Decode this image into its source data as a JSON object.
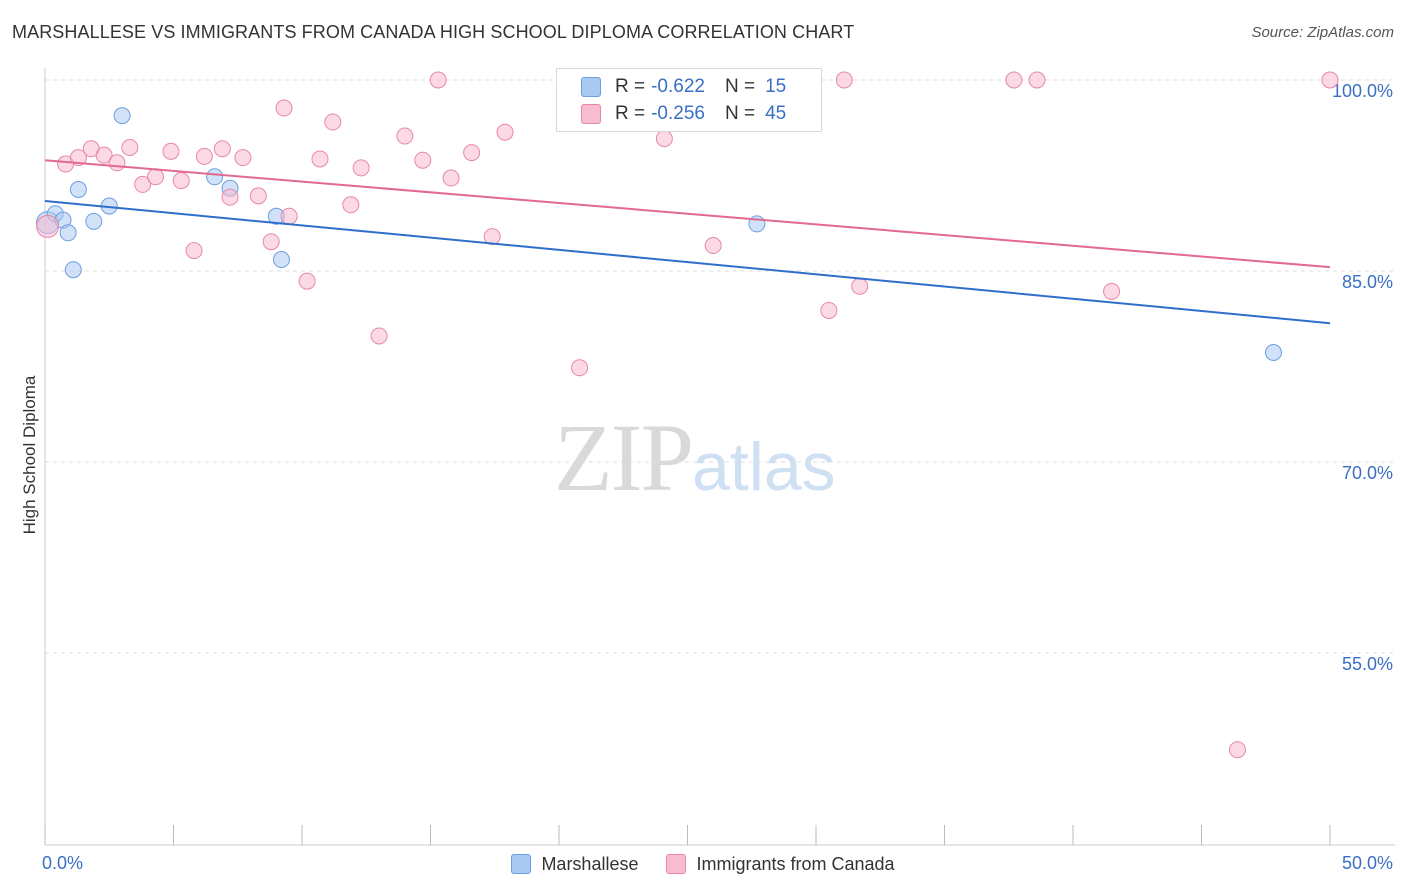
{
  "title": "MARSHALLESE VS IMMIGRANTS FROM CANADA HIGH SCHOOL DIPLOMA CORRELATION CHART",
  "source": "Source: ZipAtlas.com",
  "watermark": {
    "zip": "ZIP",
    "atlas": "atlas"
  },
  "legend": {
    "rows": [
      {
        "r_label": "R =",
        "r_value": "-0.622",
        "n_label": "N =",
        "n_value": "15",
        "color": "#a9c8f2",
        "border": "#6d9fe0"
      },
      {
        "r_label": "R =",
        "r_value": "-0.256",
        "n_label": "N =",
        "n_value": "45",
        "color": "#f7bccf",
        "border": "#e987a8"
      }
    ]
  },
  "bottom_legend": [
    "Marshallese",
    "Immigrants from Canada"
  ],
  "chart_data": {
    "type": "scatter",
    "title": "MARSHALLESE VS IMMIGRANTS FROM CANADA HIGH SCHOOL DIPLOMA CORRELATION CHART",
    "xlabel": "",
    "ylabel": "High School Diploma",
    "xlim": [
      0,
      50
    ],
    "ylim": [
      40,
      101
    ],
    "x_tick_labels": [
      "0.0%",
      "50.0%"
    ],
    "y_ticks": [
      55,
      70,
      85,
      100
    ],
    "y_tick_labels": [
      "55.0%",
      "70.0%",
      "85.0%",
      "100.0%"
    ],
    "grid": true,
    "legend_position": "top-center",
    "series": [
      {
        "name": "Marshallese",
        "color": "#a9c8f2",
        "stroke": "#6d9fe0",
        "line_color": "#2f6fcc",
        "trend": [
          [
            0,
            90.5
          ],
          [
            50,
            80.9
          ]
        ],
        "points": [
          [
            0.1,
            88.8
          ],
          [
            0.4,
            89.5
          ],
          [
            0.7,
            89.0
          ],
          [
            0.9,
            88.0
          ],
          [
            1.1,
            85.1
          ],
          [
            1.3,
            91.4
          ],
          [
            1.9,
            88.9
          ],
          [
            2.5,
            90.1
          ],
          [
            3.0,
            97.2
          ],
          [
            6.6,
            92.4
          ],
          [
            7.2,
            91.5
          ],
          [
            9.0,
            89.3
          ],
          [
            9.2,
            85.9
          ],
          [
            27.7,
            88.7
          ],
          [
            47.8,
            78.6
          ]
        ]
      },
      {
        "name": "Immigrants from Canada",
        "color": "#f7bccf",
        "stroke": "#e987a8",
        "line_color": "#e2698f",
        "trend": [
          [
            0,
            93.7
          ],
          [
            50,
            85.3
          ]
        ],
        "points": [
          [
            0.1,
            88.5
          ],
          [
            0.8,
            93.4
          ],
          [
            1.3,
            93.9
          ],
          [
            1.8,
            94.6
          ],
          [
            2.3,
            94.1
          ],
          [
            2.8,
            93.5
          ],
          [
            3.3,
            94.7
          ],
          [
            3.8,
            91.8
          ],
          [
            4.3,
            92.4
          ],
          [
            4.9,
            94.4
          ],
          [
            5.3,
            92.1
          ],
          [
            5.8,
            86.6
          ],
          [
            6.2,
            94.0
          ],
          [
            6.9,
            94.6
          ],
          [
            7.2,
            90.8
          ],
          [
            7.7,
            93.9
          ],
          [
            8.3,
            90.9
          ],
          [
            8.8,
            87.3
          ],
          [
            9.5,
            89.3
          ],
          [
            9.3,
            97.8
          ],
          [
            10.2,
            84.2
          ],
          [
            10.7,
            93.8
          ],
          [
            11.2,
            96.7
          ],
          [
            11.9,
            90.2
          ],
          [
            12.3,
            93.1
          ],
          [
            13.0,
            79.9
          ],
          [
            14.0,
            95.6
          ],
          [
            14.7,
            93.7
          ],
          [
            15.3,
            100.0
          ],
          [
            15.8,
            92.3
          ],
          [
            16.6,
            94.3
          ],
          [
            17.4,
            87.7
          ],
          [
            17.9,
            95.9
          ],
          [
            20.8,
            77.4
          ],
          [
            24.1,
            95.4
          ],
          [
            26.0,
            87.0
          ],
          [
            29.4,
            100.0
          ],
          [
            30.5,
            81.9
          ],
          [
            31.1,
            100.0
          ],
          [
            31.7,
            83.8
          ],
          [
            37.7,
            100.0
          ],
          [
            38.6,
            100.0
          ],
          [
            41.5,
            83.4
          ],
          [
            46.4,
            47.4
          ],
          [
            50.0,
            100.0
          ]
        ]
      }
    ]
  }
}
